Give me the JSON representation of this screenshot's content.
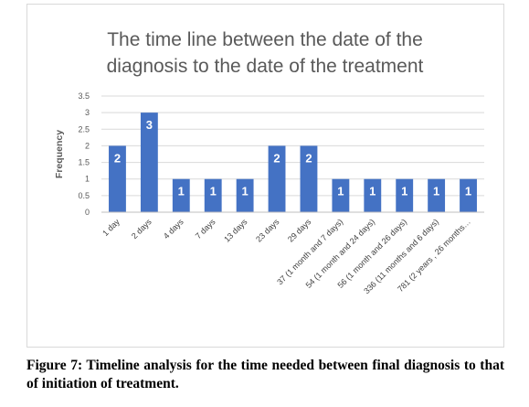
{
  "chart_data": {
    "type": "bar",
    "title_lines": [
      "The time line between the date of the",
      "diagnosis to the date of the treatment"
    ],
    "ylabel": "Frequency",
    "xlabel": "",
    "ylim": [
      0,
      3.5
    ],
    "yticks": [
      "0",
      "0.5",
      "1",
      "1.5",
      "2",
      "2.5",
      "3",
      "3.5"
    ],
    "categories": [
      "1 day",
      "2 days",
      "4 days",
      "7 days",
      "13 days",
      "23 days",
      "29 days",
      "37 (1 month and 7 days)",
      "54 (1 month and 24 days)",
      "56 (1 month and 26 days)",
      "336 (11 months and 6 days)",
      "781 (2 years , 26 months…"
    ],
    "values": [
      2,
      3,
      1,
      1,
      1,
      2,
      2,
      1,
      1,
      1,
      1,
      1
    ],
    "data_labels": [
      "2",
      "3",
      "1",
      "1",
      "1",
      "2",
      "2",
      "1",
      "1",
      "1",
      "1",
      "1"
    ],
    "grid": true,
    "legend": "none",
    "bar_color": "#4472c4"
  },
  "caption": "Figure 7: Timeline analysis for the time needed between final diagnosis to that of initiation of treatment."
}
